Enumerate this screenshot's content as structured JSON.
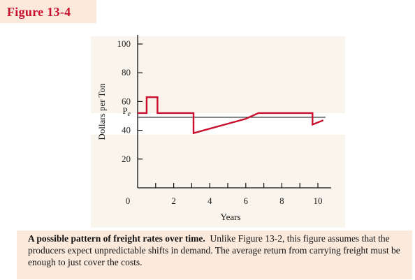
{
  "figure_label": "Figure 13-4",
  "caption": {
    "bold": "A possible pattern of freight rates over time.",
    "text": "Unlike Figure 13-2, this figure assumes that the producers expect unpredictable shifts in demand. The average return from carrying freight must be enough to just cover the costs."
  },
  "chart_data": {
    "type": "line",
    "xlabel": "Years",
    "ylabel": "Dollars per Ton",
    "xlim": [
      0,
      10.5
    ],
    "ylim": [
      0,
      100
    ],
    "x_ticks": [
      0,
      2,
      4,
      6,
      8,
      10
    ],
    "x_minor_ticks": [
      1,
      3,
      5,
      7,
      9
    ],
    "y_ticks": [
      20,
      40,
      60,
      80,
      100
    ],
    "reference_line": {
      "label": "Pe",
      "label_main": "P",
      "label_sub": "e",
      "y": 49
    },
    "series": [
      {
        "color": "#c8102e",
        "x": [
          0,
          0.5,
          0.5,
          1.1,
          1.1,
          3.1,
          3.1,
          6.0,
          6.7,
          9.7,
          9.7,
          10.3
        ],
        "y": [
          52,
          52,
          63,
          63,
          52,
          52,
          38,
          48,
          52,
          52,
          44,
          47
        ]
      }
    ]
  }
}
